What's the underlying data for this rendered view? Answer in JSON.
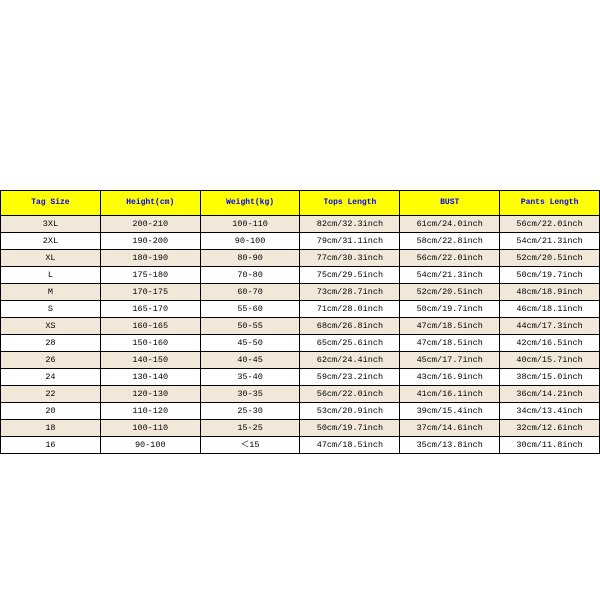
{
  "size_table": {
    "type": "table",
    "header_bg": "#ffff00",
    "header_text_color": "#0000ff",
    "row_odd_bg": "#f2e8da",
    "row_even_bg": "#ffffff",
    "border_color": "#000000",
    "font_family": "Courier New",
    "columns": [
      "Tag Size",
      "Height(cm)",
      "Weight(kg)",
      "Tops Length",
      "BUST",
      "Pants Length"
    ],
    "rows": [
      [
        "3XL",
        "200-210",
        "100-110",
        "82cm/32.3inch",
        "61cm/24.0inch",
        "56cm/22.0inch"
      ],
      [
        "2XL",
        "190-200",
        "90-100",
        "79cm/31.1inch",
        "58cm/22.8inch",
        "54cm/21.3inch"
      ],
      [
        "XL",
        "180-190",
        "80-90",
        "77cm/30.3inch",
        "56cm/22.0inch",
        "52cm/20.5inch"
      ],
      [
        "L",
        "175-180",
        "70-80",
        "75cm/29.5inch",
        "54cm/21.3inch",
        "50cm/19.7inch"
      ],
      [
        "M",
        "170-175",
        "60-70",
        "73cm/28.7inch",
        "52cm/20.5inch",
        "48cm/18.9inch"
      ],
      [
        "S",
        "165-170",
        "55-60",
        "71cm/28.0inch",
        "50cm/19.7inch",
        "46cm/18.1inch"
      ],
      [
        "XS",
        "160-165",
        "50-55",
        "68cm/26.8inch",
        "47cm/18.5inch",
        "44cm/17.3inch"
      ],
      [
        "28",
        "150-160",
        "45-50",
        "65cm/25.6inch",
        "47cm/18.5inch",
        "42cm/16.5inch"
      ],
      [
        "26",
        "140-150",
        "40-45",
        "62cm/24.4inch",
        "45cm/17.7inch",
        "40cm/15.7inch"
      ],
      [
        "24",
        "130-140",
        "35-40",
        "59cm/23.2inch",
        "43cm/16.9inch",
        "38cm/15.0inch"
      ],
      [
        "22",
        "120-130",
        "30-35",
        "56cm/22.0inch",
        "41cm/16.1inch",
        "36cm/14.2inch"
      ],
      [
        "20",
        "110-120",
        "25-30",
        "53cm/20.9inch",
        "39cm/15.4inch",
        "34cm/13.4inch"
      ],
      [
        "18",
        "100-110",
        "15-25",
        "50cm/19.7inch",
        "37cm/14.6inch",
        "32cm/12.6inch"
      ],
      [
        "16",
        "90-100",
        "＜15",
        "47cm/18.5inch",
        "35cm/13.8inch",
        "30cm/11.8inch"
      ]
    ]
  }
}
